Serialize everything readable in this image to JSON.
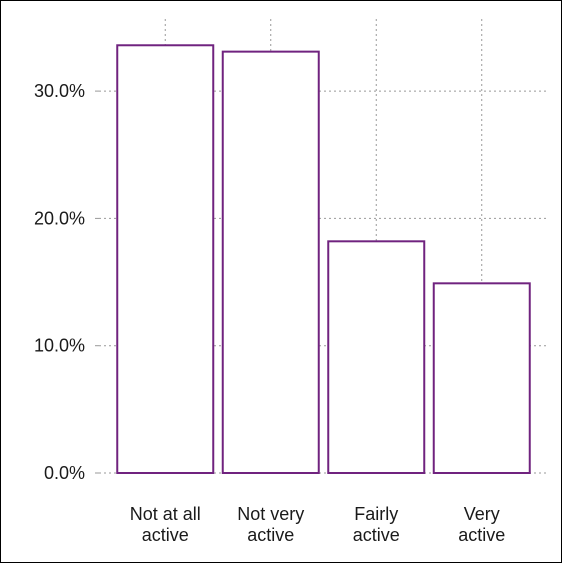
{
  "chart_data": {
    "type": "bar",
    "title": "",
    "xlabel": "",
    "ylabel": "",
    "categories": [
      [
        "Not at all",
        "active"
      ],
      [
        "Not very",
        "active"
      ],
      [
        "Fairly",
        "active"
      ],
      [
        "Very",
        "active"
      ]
    ],
    "values": [
      33.6,
      33.1,
      18.2,
      14.9
    ],
    "ylim": [
      0,
      35
    ],
    "yticks": [
      0,
      10,
      20,
      30
    ],
    "ytick_labels": [
      "0.0%",
      "10.0%",
      "20.0%",
      "30.0%"
    ],
    "grid": true,
    "legend": "none",
    "colors": {
      "bar_stroke": "#70237f",
      "bar_fill": "#ffffff",
      "grid": "#999999",
      "text": "#1a1a1a"
    }
  }
}
